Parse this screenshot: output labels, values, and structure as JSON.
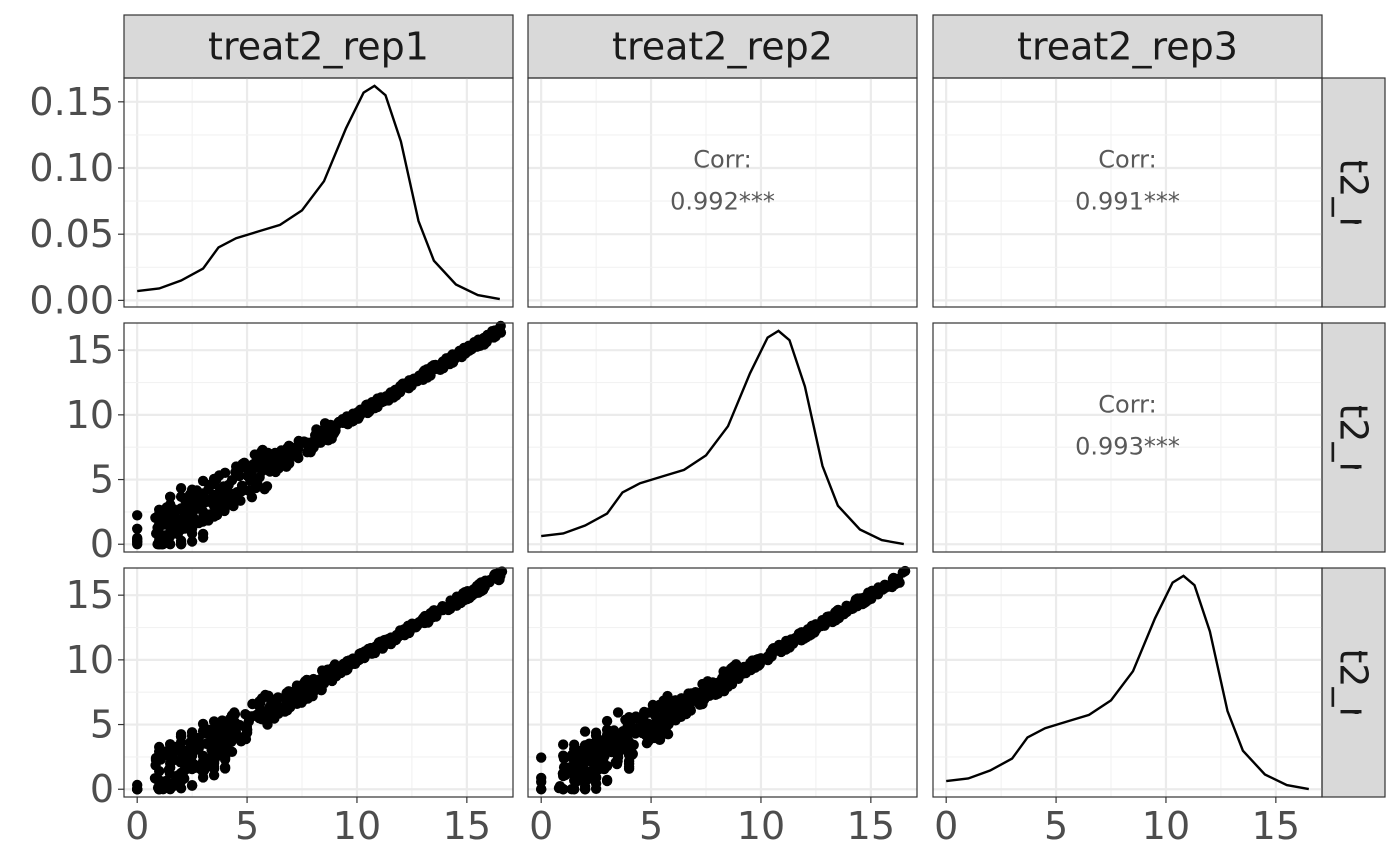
{
  "chart_data": {
    "type": "scatter",
    "variables": [
      "treat2_rep1",
      "treat2_rep2",
      "treat2_rep3"
    ],
    "diag_type": "density",
    "upper_type": "correlation",
    "lower_type": "scatter",
    "axis_range": [
      -0.6,
      17.1
    ],
    "ticks": [
      0,
      5,
      10,
      15
    ],
    "density_ylim": [
      -0.005,
      0.168
    ],
    "density_ticks": [
      "0.00",
      "0.05",
      "0.10",
      "0.15"
    ],
    "corr_label": "Corr:",
    "correlations": [
      {
        "row": 0,
        "col": 1,
        "text": "0.992***"
      },
      {
        "row": 0,
        "col": 2,
        "text": "0.991***"
      },
      {
        "row": 1,
        "col": 2,
        "text": "0.993***"
      }
    ],
    "density_curve": {
      "x": [
        0.0,
        1.0,
        2.0,
        3.0,
        3.7,
        4.5,
        5.5,
        6.5,
        7.5,
        8.5,
        9.5,
        10.3,
        10.8,
        11.3,
        12.0,
        12.8,
        13.5,
        14.5,
        15.5,
        16.5
      ],
      "y": [
        0.007,
        0.009,
        0.015,
        0.024,
        0.04,
        0.047,
        0.052,
        0.057,
        0.068,
        0.09,
        0.13,
        0.157,
        0.162,
        0.155,
        0.12,
        0.06,
        0.03,
        0.012,
        0.004,
        0.001
      ]
    },
    "scatter_trend": {
      "x": [
        0,
        16.6
      ],
      "y": [
        0,
        16.6
      ]
    },
    "grid": true,
    "legend": "none"
  }
}
